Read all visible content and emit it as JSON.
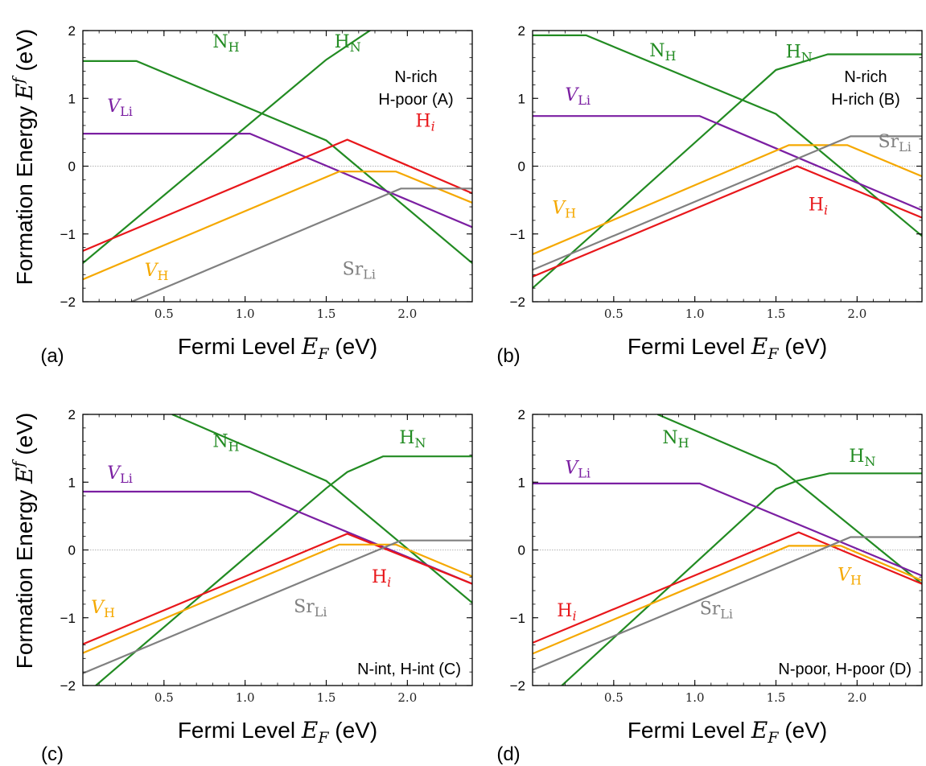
{
  "colors": {
    "N_H": "#228b22",
    "H_N": "#228b22",
    "V_Li": "#7b1fa2",
    "H_i": "#e8171b",
    "V_H": "#f5a800",
    "Sr_Li": "#808080"
  },
  "ylabel": "Formation Energy E^f (eV)",
  "chart_data": [
    {
      "type": "line",
      "panel_label": "(a)",
      "xlabel": "Fermi Level E_F (eV)",
      "ylabel": "Formation Energy E^f (eV)",
      "xlim": [
        0,
        2.4
      ],
      "ylim": [
        -2,
        2
      ],
      "xticks": [
        "0.5",
        "1.0",
        "1.5",
        "2.0"
      ],
      "yticks": [
        "-2",
        "-1",
        "0",
        "1",
        "2"
      ],
      "annotation_lines": [
        "N-rich",
        "H-poor (A)"
      ],
      "series": [
        {
          "name": "N_H",
          "label_main": "N",
          "label_sub": "H",
          "color_key": "N_H",
          "italic": false,
          "label_pos": [
            0.8,
            1.75
          ],
          "x": [
            0,
            0.33,
            1.5,
            2.4
          ],
          "y": [
            1.55,
            1.55,
            0.38,
            -1.43
          ]
        },
        {
          "name": "H_N",
          "label_main": "H",
          "label_sub": "N",
          "color_key": "H_N",
          "italic": false,
          "label_pos": [
            1.55,
            1.75
          ],
          "x": [
            0,
            1.5,
            1.8,
            2.4
          ],
          "y": [
            -1.43,
            1.57,
            2.05,
            2.05
          ]
        },
        {
          "name": "V_Li",
          "label_main": "V",
          "label_sub": "Li",
          "color_key": "V_Li",
          "italic": true,
          "label_pos": [
            0.15,
            0.8
          ],
          "x": [
            0,
            1.03,
            2.4
          ],
          "y": [
            0.48,
            0.48,
            -0.9
          ]
        },
        {
          "name": "H_i",
          "label_main": "H",
          "label_sub": "i",
          "color_key": "H_i",
          "italic": false,
          "label_pos": [
            2.05,
            0.58
          ],
          "x": [
            0,
            1.63,
            2.4
          ],
          "y": [
            -1.25,
            0.39,
            -0.4
          ]
        },
        {
          "name": "V_H",
          "label_main": "V",
          "label_sub": "H",
          "color_key": "V_H",
          "italic": true,
          "label_pos": [
            0.38,
            -1.62
          ],
          "x": [
            0,
            1.58,
            1.93,
            2.4
          ],
          "y": [
            -1.67,
            -0.08,
            -0.08,
            -0.54
          ]
        },
        {
          "name": "Sr_Li",
          "label_main": "Sr",
          "label_sub": "Li",
          "color_key": "Sr_Li",
          "italic": false,
          "label_pos": [
            1.6,
            -1.6
          ],
          "x": [
            0.3,
            1.96,
            2.4
          ],
          "y": [
            -2,
            -0.33,
            -0.33
          ]
        }
      ]
    },
    {
      "type": "line",
      "panel_label": "(b)",
      "xlabel": "Fermi Level E_F (eV)",
      "ylabel": "",
      "xlim": [
        0,
        2.4
      ],
      "ylim": [
        -2,
        2
      ],
      "xticks": [
        "0.5",
        "1.0",
        "1.5",
        "2.0"
      ],
      "yticks": [
        "-2",
        "-1",
        "0",
        "1",
        "2"
      ],
      "annotation_lines": [
        "N-rich",
        "H-rich (B)"
      ],
      "series": [
        {
          "name": "N_H",
          "label_main": "N",
          "label_sub": "H",
          "color_key": "N_H",
          "italic": false,
          "label_pos": [
            0.72,
            1.62
          ],
          "x": [
            0,
            0.33,
            1.5,
            2.4
          ],
          "y": [
            1.93,
            1.93,
            0.77,
            -1.03
          ]
        },
        {
          "name": "H_N",
          "label_main": "H",
          "label_sub": "N",
          "color_key": "H_N",
          "italic": false,
          "label_pos": [
            1.56,
            1.6
          ],
          "x": [
            0,
            1.5,
            1.82,
            2.4
          ],
          "y": [
            -1.8,
            1.42,
            1.65,
            1.65
          ]
        },
        {
          "name": "V_Li",
          "label_main": "V",
          "label_sub": "Li",
          "color_key": "V_Li",
          "italic": true,
          "label_pos": [
            0.2,
            0.97
          ],
          "x": [
            0,
            1.03,
            2.4
          ],
          "y": [
            0.74,
            0.74,
            -0.65
          ]
        },
        {
          "name": "H_i",
          "label_main": "H",
          "label_sub": "i",
          "color_key": "H_i",
          "italic": false,
          "label_pos": [
            1.7,
            -0.65
          ],
          "x": [
            0,
            1.63,
            2.4
          ],
          "y": [
            -1.63,
            0.0,
            -0.76
          ]
        },
        {
          "name": "V_H",
          "label_main": "V",
          "label_sub": "H",
          "color_key": "V_H",
          "italic": true,
          "label_pos": [
            0.12,
            -0.7
          ],
          "x": [
            0,
            1.58,
            1.94,
            2.4
          ],
          "y": [
            -1.3,
            0.31,
            0.31,
            -0.15
          ]
        },
        {
          "name": "Sr_Li",
          "label_main": "Sr",
          "label_sub": "Li",
          "color_key": "Sr_Li",
          "italic": false,
          "label_pos": [
            2.13,
            0.28
          ],
          "x": [
            0,
            1.96,
            2.4
          ],
          "y": [
            -1.53,
            0.44,
            0.44
          ]
        }
      ]
    },
    {
      "type": "line",
      "panel_label": "(c)",
      "xlabel": "Fermi Level E_F (eV)",
      "ylabel": "Formation Energy E^f (eV)",
      "xlim": [
        0,
        2.4
      ],
      "ylim": [
        -2,
        2
      ],
      "xticks": [
        "0.5",
        "1.0",
        "1.5",
        "2.0"
      ],
      "yticks": [
        "-2",
        "-1",
        "0",
        "1",
        "2"
      ],
      "annotation_lines": [
        "N-int, H-int (C)"
      ],
      "series": [
        {
          "name": "N_H",
          "label_main": "N",
          "label_sub": "H",
          "color_key": "N_H",
          "italic": false,
          "label_pos": [
            0.8,
            1.52
          ],
          "x": [
            0.55,
            1.5,
            2.4
          ],
          "y": [
            2.0,
            1.02,
            -0.78
          ]
        },
        {
          "name": "H_N",
          "label_main": "H",
          "label_sub": "N",
          "color_key": "H_N",
          "italic": false,
          "label_pos": [
            1.95,
            1.57
          ],
          "x": [
            0.08,
            1.5,
            1.63,
            1.85,
            2.4
          ],
          "y": [
            -2,
            0.91,
            1.15,
            1.38,
            1.38
          ]
        },
        {
          "name": "V_Li",
          "label_main": "V",
          "label_sub": "Li",
          "color_key": "V_Li",
          "italic": true,
          "label_pos": [
            0.15,
            1.05
          ],
          "x": [
            0,
            1.03,
            2.4
          ],
          "y": [
            0.86,
            0.86,
            -0.5
          ]
        },
        {
          "name": "H_i",
          "label_main": "H",
          "label_sub": "i",
          "color_key": "H_i",
          "italic": false,
          "label_pos": [
            1.78,
            -0.48
          ],
          "x": [
            0,
            1.63,
            2.4
          ],
          "y": [
            -1.39,
            0.24,
            -0.5
          ]
        },
        {
          "name": "V_H",
          "label_main": "V",
          "label_sub": "H",
          "color_key": "V_H",
          "italic": true,
          "label_pos": [
            0.05,
            -0.93
          ],
          "x": [
            0,
            1.58,
            1.93,
            2.4
          ],
          "y": [
            -1.52,
            0.08,
            0.08,
            -0.39
          ]
        },
        {
          "name": "Sr_Li",
          "label_main": "Sr",
          "label_sub": "Li",
          "color_key": "Sr_Li",
          "italic": false,
          "label_pos": [
            1.3,
            -0.92
          ],
          "x": [
            0,
            1.96,
            2.4
          ],
          "y": [
            -1.82,
            0.14,
            0.14
          ]
        }
      ]
    },
    {
      "type": "line",
      "panel_label": "(d)",
      "xlabel": "Fermi Level E_F (eV)",
      "ylabel": "",
      "xlim": [
        0,
        2.4
      ],
      "ylim": [
        -2,
        2
      ],
      "xticks": [
        "0.5",
        "1.0",
        "1.5",
        "2.0"
      ],
      "yticks": [
        "-2",
        "-1",
        "0",
        "1",
        "2"
      ],
      "annotation_lines": [
        "N-poor, H-poor (D)"
      ],
      "series": [
        {
          "name": "N_H",
          "label_main": "N",
          "label_sub": "H",
          "color_key": "N_H",
          "italic": false,
          "label_pos": [
            0.8,
            1.57
          ],
          "x": [
            0.77,
            1.5,
            2.4
          ],
          "y": [
            2.0,
            1.25,
            -0.5
          ]
        },
        {
          "name": "H_N",
          "label_main": "H",
          "label_sub": "N",
          "color_key": "H_N",
          "italic": false,
          "label_pos": [
            1.95,
            1.3
          ],
          "x": [
            0.18,
            1.5,
            1.63,
            1.83,
            2.4
          ],
          "y": [
            -2,
            0.9,
            1.02,
            1.13,
            1.13
          ]
        },
        {
          "name": "V_Li",
          "label_main": "V",
          "label_sub": "Li",
          "color_key": "V_Li",
          "italic": true,
          "label_pos": [
            0.2,
            1.13
          ],
          "x": [
            0,
            1.03,
            2.4
          ],
          "y": [
            0.98,
            0.98,
            -0.38
          ]
        },
        {
          "name": "H_i",
          "label_main": "H",
          "label_sub": "i",
          "color_key": "H_i",
          "italic": false,
          "label_pos": [
            0.15,
            -0.98
          ],
          "x": [
            0,
            1.64,
            2.4
          ],
          "y": [
            -1.37,
            0.26,
            -0.5
          ]
        },
        {
          "name": "V_H",
          "label_main": "V",
          "label_sub": "H",
          "color_key": "V_H",
          "italic": true,
          "label_pos": [
            1.88,
            -0.45
          ],
          "x": [
            0,
            1.58,
            1.9,
            2.4
          ],
          "y": [
            -1.53,
            0.06,
            0.06,
            -0.45
          ]
        },
        {
          "name": "Sr_Li",
          "label_main": "Sr",
          "label_sub": "Li",
          "color_key": "Sr_Li",
          "italic": false,
          "label_pos": [
            1.03,
            -0.95
          ],
          "x": [
            0,
            1.96,
            2.4
          ],
          "y": [
            -1.77,
            0.19,
            0.19
          ]
        }
      ]
    }
  ]
}
